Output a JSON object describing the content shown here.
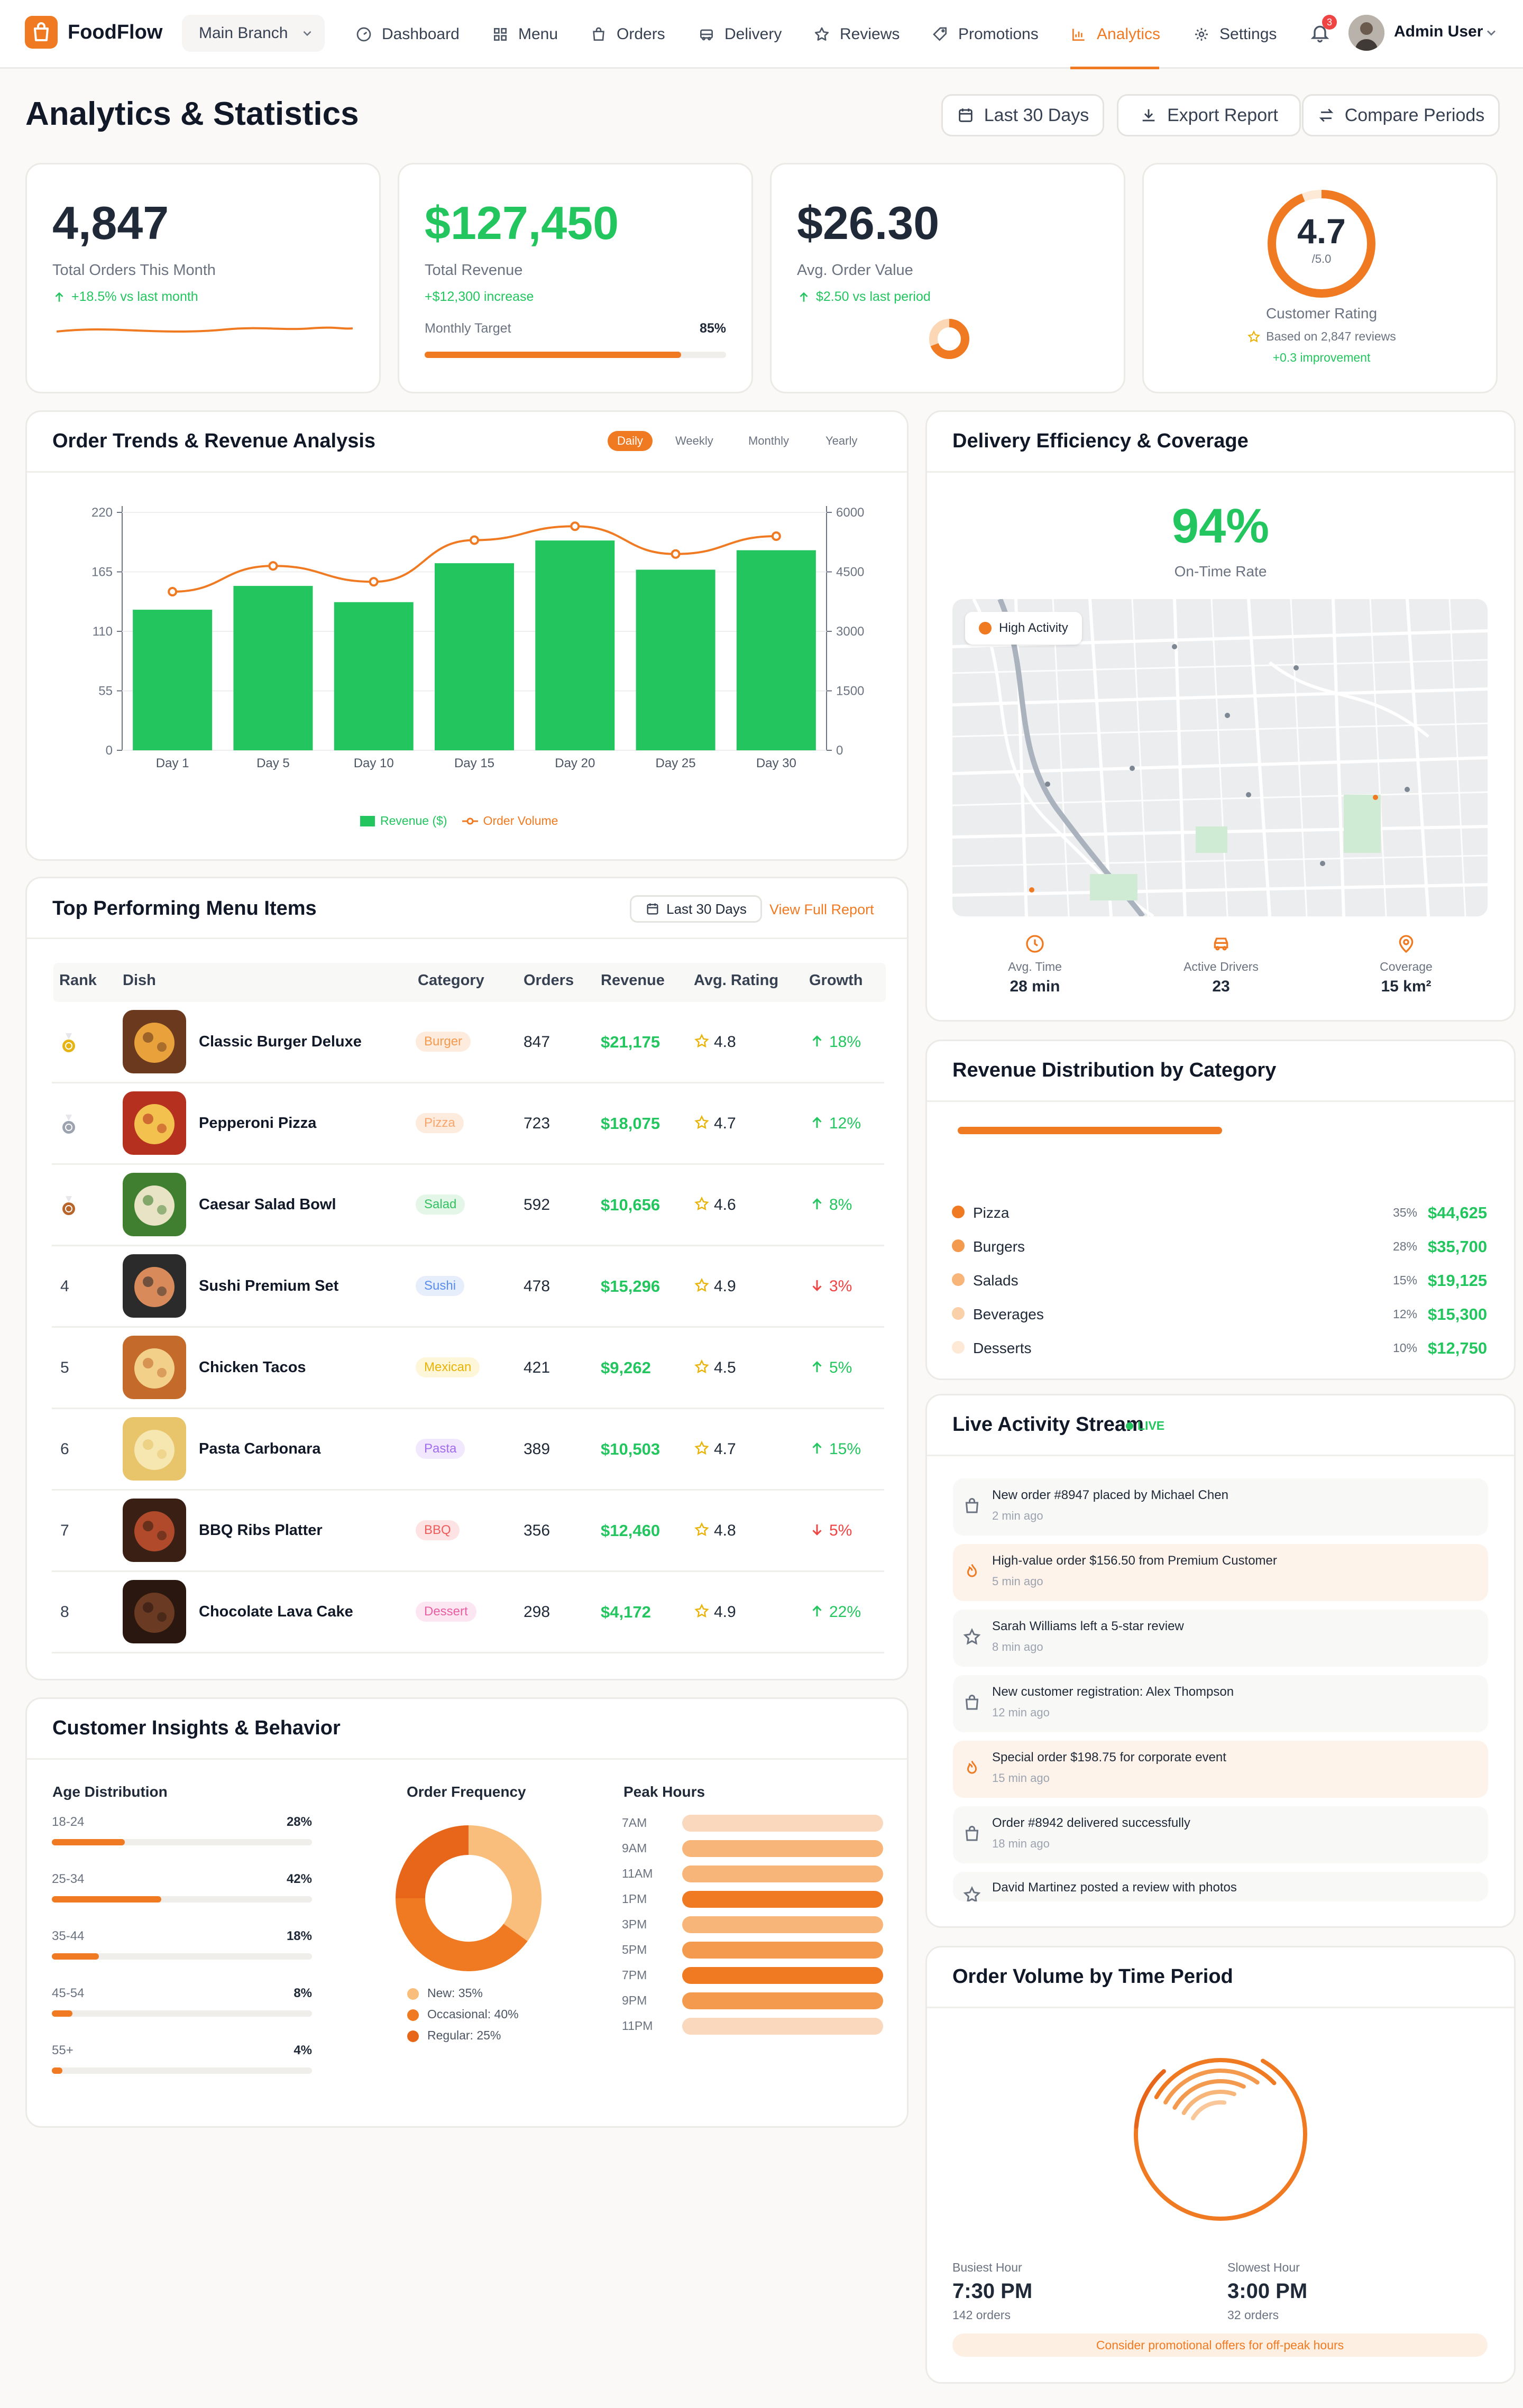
{
  "brand": {
    "name": "FoodFlow",
    "branch": "Main Branch"
  },
  "nav": [
    {
      "label": "Dashboard",
      "icon": "dashboard-icon"
    },
    {
      "label": "Menu",
      "icon": "grid-icon"
    },
    {
      "label": "Orders",
      "icon": "bag-icon"
    },
    {
      "label": "Delivery",
      "icon": "truck-icon"
    },
    {
      "label": "Reviews",
      "icon": "star-icon"
    },
    {
      "label": "Promotions",
      "icon": "tag-icon"
    },
    {
      "label": "Analytics",
      "icon": "chart-icon",
      "active": true
    },
    {
      "label": "Settings",
      "icon": "gear-icon"
    }
  ],
  "notifications": {
    "count": "3"
  },
  "user": {
    "name": "Admin User"
  },
  "page": {
    "title": "Analytics & Statistics",
    "actions": {
      "range": "Last 30 Days",
      "export": "Export Report",
      "compare": "Compare Periods"
    }
  },
  "kpis": {
    "orders": {
      "value": "4,847",
      "label": "Total Orders This Month",
      "delta": "+18.5% vs last month"
    },
    "revenue": {
      "value": "$127,450",
      "label": "Total Revenue",
      "delta": "+$12,300 increase",
      "target_label": "Monthly Target",
      "target_pct": "85%",
      "target_value": 0.85
    },
    "aov": {
      "value": "$26.30",
      "label": "Avg. Order Value",
      "delta": "$2.50 vs last period"
    },
    "rating": {
      "value": "4.7",
      "scale": "/5.0",
      "label": "Customer Rating",
      "reviews": "Based on 2,847 reviews",
      "delta": "+0.3 improvement",
      "fraction": 0.94
    }
  },
  "trends": {
    "title": "Order Trends & Revenue Analysis",
    "tabs": [
      "Daily",
      "Weekly",
      "Monthly",
      "Yearly"
    ],
    "legend": {
      "revenue": "Revenue ($)",
      "orders": "Order Volume"
    }
  },
  "chart_data": {
    "type": "bar",
    "categories": [
      "Day 1",
      "Day 5",
      "Day 10",
      "Day 15",
      "Day 20",
      "Day 25",
      "Day 30"
    ],
    "series": [
      {
        "name": "Revenue ($)",
        "type": "bar",
        "axis": "left",
        "values": [
          130,
          152,
          137,
          173,
          194,
          167,
          185
        ]
      },
      {
        "name": "Order Volume",
        "type": "line",
        "axis": "right",
        "values": [
          4000,
          4650,
          4250,
          5300,
          5650,
          4950,
          5400
        ]
      }
    ],
    "y_left": {
      "ticks": [
        0,
        55,
        110,
        165,
        220
      ],
      "range": [
        0,
        220
      ]
    },
    "y_right": {
      "ticks": [
        0,
        1500,
        3000,
        4500,
        6000
      ],
      "range": [
        0,
        6000
      ]
    },
    "colors": {
      "bar": "#22C55E",
      "line": "#F07A22"
    },
    "grid": true,
    "legend": "bottom"
  },
  "delivery": {
    "title": "Delivery Efficiency & Coverage",
    "rate": "94%",
    "rate_label": "On-Time Rate",
    "map_tag": "High Activity",
    "stats": [
      {
        "label": "Avg. Time",
        "value": "28 min",
        "icon": "clock-icon"
      },
      {
        "label": "Active Drivers",
        "value": "23",
        "icon": "car-icon"
      },
      {
        "label": "Coverage",
        "value": "15 km²",
        "icon": "pin-icon"
      }
    ]
  },
  "top_items": {
    "title": "Top Performing Menu Items",
    "range": "Last 30 Days",
    "report_link": "View Full Report",
    "columns": [
      "Rank",
      "Dish",
      "Category",
      "Orders",
      "Revenue",
      "Avg. Rating",
      "Growth"
    ],
    "rows": [
      {
        "rank": "",
        "medal": "gold",
        "dish": "Classic Burger Deluxe",
        "category": "Burger",
        "orders": "847",
        "revenue": "$21,175",
        "rating": "4.8",
        "growth": "18%",
        "dir": "up"
      },
      {
        "rank": "",
        "medal": "silver",
        "dish": "Pepperoni Pizza",
        "category": "Pizza",
        "orders": "723",
        "revenue": "$18,075",
        "rating": "4.7",
        "growth": "12%",
        "dir": "up"
      },
      {
        "rank": "",
        "medal": "bronze",
        "dish": "Caesar Salad Bowl",
        "category": "Salad",
        "orders": "592",
        "revenue": "$10,656",
        "rating": "4.6",
        "growth": "8%",
        "dir": "up"
      },
      {
        "rank": "4",
        "medal": "",
        "dish": "Sushi Premium Set",
        "category": "Sushi",
        "orders": "478",
        "revenue": "$15,296",
        "rating": "4.9",
        "growth": "3%",
        "dir": "down"
      },
      {
        "rank": "5",
        "medal": "",
        "dish": "Chicken Tacos",
        "category": "Mexican",
        "orders": "421",
        "revenue": "$9,262",
        "rating": "4.5",
        "growth": "5%",
        "dir": "up"
      },
      {
        "rank": "6",
        "medal": "",
        "dish": "Pasta Carbonara",
        "category": "Pasta",
        "orders": "389",
        "revenue": "$10,503",
        "rating": "4.7",
        "growth": "15%",
        "dir": "up"
      },
      {
        "rank": "7",
        "medal": "",
        "dish": "BBQ Ribs Platter",
        "category": "BBQ",
        "orders": "356",
        "revenue": "$12,460",
        "rating": "4.8",
        "growth": "5%",
        "dir": "down"
      },
      {
        "rank": "8",
        "medal": "",
        "dish": "Chocolate Lava Cake",
        "category": "Dessert",
        "orders": "298",
        "revenue": "$4,172",
        "rating": "4.9",
        "growth": "22%",
        "dir": "up"
      }
    ]
  },
  "revenue_dist": {
    "title": "Revenue Distribution by Category",
    "items": [
      {
        "name": "Pizza",
        "pct": "35%",
        "value": "$44,625",
        "color": "#F07A22"
      },
      {
        "name": "Burgers",
        "pct": "28%",
        "value": "$35,700",
        "color": "#F49A4E"
      },
      {
        "name": "Salads",
        "pct": "15%",
        "value": "$19,125",
        "color": "#F7B57A"
      },
      {
        "name": "Beverages",
        "pct": "12%",
        "value": "$15,300",
        "color": "#FAD0A8"
      },
      {
        "name": "Desserts",
        "pct": "10%",
        "value": "$12,750",
        "color": "#FDE9D6"
      }
    ]
  },
  "activity": {
    "title": "Live Activity Stream",
    "live": "LIVE",
    "items": [
      {
        "text": "New order #8947 placed by Michael Chen",
        "time": "2 min ago",
        "icon": "bag-icon",
        "hl": false
      },
      {
        "text": "High-value order $156.50 from Premium Customer",
        "time": "5 min ago",
        "icon": "flame-icon",
        "hl": true
      },
      {
        "text": "Sarah Williams left a 5-star review",
        "time": "8 min ago",
        "icon": "star-icon",
        "hl": false
      },
      {
        "text": "New customer registration: Alex Thompson",
        "time": "12 min ago",
        "icon": "bag-icon",
        "hl": false
      },
      {
        "text": "Special order $198.75 for corporate event",
        "time": "15 min ago",
        "icon": "flame-icon",
        "hl": true
      },
      {
        "text": "Order #8942 delivered successfully",
        "time": "18 min ago",
        "icon": "bag-icon",
        "hl": false
      },
      {
        "text": "David Martinez posted a review with photos",
        "time": "",
        "icon": "star-icon",
        "hl": false
      }
    ]
  },
  "insights": {
    "title": "Customer Insights & Behavior",
    "age": {
      "title": "Age Distribution",
      "items": [
        {
          "label": "18-24",
          "pct": "28%",
          "value": 0.28
        },
        {
          "label": "25-34",
          "pct": "42%",
          "value": 0.42
        },
        {
          "label": "35-44",
          "pct": "18%",
          "value": 0.18
        },
        {
          "label": "45-54",
          "pct": "8%",
          "value": 0.08
        },
        {
          "label": "55+",
          "pct": "4%",
          "value": 0.04
        }
      ]
    },
    "frequency": {
      "title": "Order Frequency",
      "items": [
        {
          "label": "New: 35%",
          "value": 35,
          "color": "#F9BD7C"
        },
        {
          "label": "Occasional: 40%",
          "value": 40,
          "color": "#F07A22"
        },
        {
          "label": "Regular: 25%",
          "value": 25,
          "color": "#E8661A"
        }
      ]
    },
    "peak": {
      "title": "Peak Hours",
      "items": [
        {
          "label": "7AM",
          "level": 0.25
        },
        {
          "label": "9AM",
          "level": 0.4
        },
        {
          "label": "11AM",
          "level": 0.55
        },
        {
          "label": "1PM",
          "level": 0.85
        },
        {
          "label": "3PM",
          "level": 0.45
        },
        {
          "label": "5PM",
          "level": 0.6
        },
        {
          "label": "7PM",
          "level": 1.0
        },
        {
          "label": "9PM",
          "level": 0.75
        },
        {
          "label": "11PM",
          "level": 0.2
        }
      ]
    }
  },
  "volume": {
    "title": "Order Volume by Time Period",
    "busiest": {
      "label": "Busiest Hour",
      "time": "7:30 PM",
      "orders": "142 orders"
    },
    "slowest": {
      "label": "Slowest Hour",
      "time": "3:00 PM",
      "orders": "32 orders"
    },
    "tip": "Consider promotional offers for off-peak hours"
  }
}
